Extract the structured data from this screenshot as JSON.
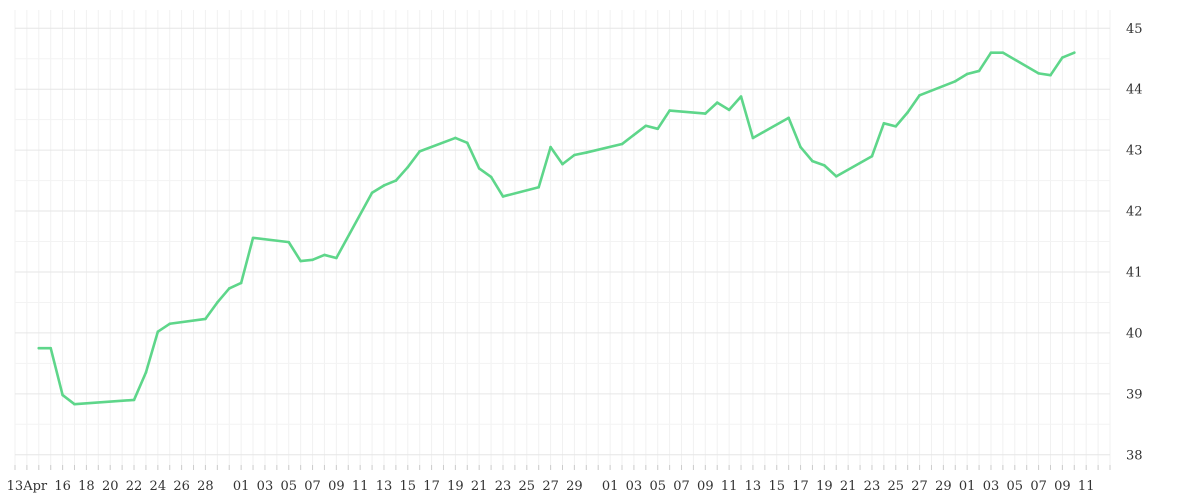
{
  "chart_data": {
    "type": "line",
    "title": "",
    "xlabel": "",
    "ylabel": "",
    "x_ticks": [
      "13Apr",
      "16",
      "18",
      "20",
      "22",
      "24",
      "26",
      "28",
      "01",
      "03",
      "05",
      "07",
      "09",
      "11",
      "13",
      "15",
      "17",
      "19",
      "21",
      "23",
      "25",
      "27",
      "29",
      "01",
      "03",
      "05",
      "07",
      "09",
      "11",
      "13",
      "15",
      "17",
      "19",
      "21",
      "23",
      "25",
      "27",
      "29",
      "01",
      "03",
      "05",
      "07",
      "09",
      "11"
    ],
    "y_ticks": [
      "38",
      "39",
      "40",
      "41",
      "42",
      "43",
      "44",
      "45"
    ],
    "ylim": [
      37.75,
      45.3
    ],
    "y_axis_position": "right",
    "grid": true,
    "line_color": "#5ed68a",
    "series": [
      {
        "values": [
          {
            "x": "2020-04-14",
            "y": 39.75
          },
          {
            "x": "2020-04-15",
            "y": 39.75
          },
          {
            "x": "2020-04-16",
            "y": 38.98
          },
          {
            "x": "2020-04-17",
            "y": 38.83
          },
          {
            "x": "2020-04-22",
            "y": 38.9
          },
          {
            "x": "2020-04-23",
            "y": 39.35
          },
          {
            "x": "2020-04-24",
            "y": 40.02
          },
          {
            "x": "2020-04-25",
            "y": 40.15
          },
          {
            "x": "2020-04-28",
            "y": 40.23
          },
          {
            "x": "2020-04-29",
            "y": 40.5
          },
          {
            "x": "2020-04-30",
            "y": 40.73
          },
          {
            "x": "2020-05-01",
            "y": 40.82
          },
          {
            "x": "2020-05-02",
            "y": 41.56
          },
          {
            "x": "2020-05-05",
            "y": 41.49
          },
          {
            "x": "2020-05-06",
            "y": 41.18
          },
          {
            "x": "2020-05-07",
            "y": 41.2
          },
          {
            "x": "2020-05-08",
            "y": 41.28
          },
          {
            "x": "2020-05-09",
            "y": 41.23
          },
          {
            "x": "2020-05-12",
            "y": 42.3
          },
          {
            "x": "2020-05-13",
            "y": 42.42
          },
          {
            "x": "2020-05-14",
            "y": 42.5
          },
          {
            "x": "2020-05-15",
            "y": 42.72
          },
          {
            "x": "2020-05-16",
            "y": 42.98
          },
          {
            "x": "2020-05-19",
            "y": 43.2
          },
          {
            "x": "2020-05-20",
            "y": 43.12
          },
          {
            "x": "2020-05-21",
            "y": 42.7
          },
          {
            "x": "2020-05-22",
            "y": 42.56
          },
          {
            "x": "2020-05-23",
            "y": 42.24
          },
          {
            "x": "2020-05-26",
            "y": 42.39
          },
          {
            "x": "2020-05-27",
            "y": 43.05
          },
          {
            "x": "2020-05-28",
            "y": 42.77
          },
          {
            "x": "2020-05-29",
            "y": 42.92
          },
          {
            "x": "2020-05-30",
            "y": 42.96
          },
          {
            "x": "2020-06-02",
            "y": 43.1
          },
          {
            "x": "2020-06-03",
            "y": 43.25
          },
          {
            "x": "2020-06-04",
            "y": 43.4
          },
          {
            "x": "2020-06-05",
            "y": 43.35
          },
          {
            "x": "2020-06-06",
            "y": 43.65
          },
          {
            "x": "2020-06-09",
            "y": 43.6
          },
          {
            "x": "2020-06-10",
            "y": 43.78
          },
          {
            "x": "2020-06-11",
            "y": 43.66
          },
          {
            "x": "2020-06-12",
            "y": 43.88
          },
          {
            "x": "2020-06-13",
            "y": 43.2
          },
          {
            "x": "2020-06-16",
            "y": 43.53
          },
          {
            "x": "2020-06-17",
            "y": 43.05
          },
          {
            "x": "2020-06-18",
            "y": 42.82
          },
          {
            "x": "2020-06-19",
            "y": 42.75
          },
          {
            "x": "2020-06-20",
            "y": 42.57
          },
          {
            "x": "2020-06-23",
            "y": 42.9
          },
          {
            "x": "2020-06-24",
            "y": 43.44
          },
          {
            "x": "2020-06-25",
            "y": 43.39
          },
          {
            "x": "2020-06-26",
            "y": 43.62
          },
          {
            "x": "2020-06-27",
            "y": 43.9
          },
          {
            "x": "2020-06-30",
            "y": 44.13
          },
          {
            "x": "2020-07-01",
            "y": 44.25
          },
          {
            "x": "2020-07-02",
            "y": 44.3
          },
          {
            "x": "2020-07-03",
            "y": 44.6
          },
          {
            "x": "2020-07-04",
            "y": 44.6
          },
          {
            "x": "2020-07-07",
            "y": 44.26
          },
          {
            "x": "2020-07-08",
            "y": 44.23
          },
          {
            "x": "2020-07-09",
            "y": 44.52
          },
          {
            "x": "2020-07-10",
            "y": 44.6
          }
        ]
      }
    ]
  }
}
